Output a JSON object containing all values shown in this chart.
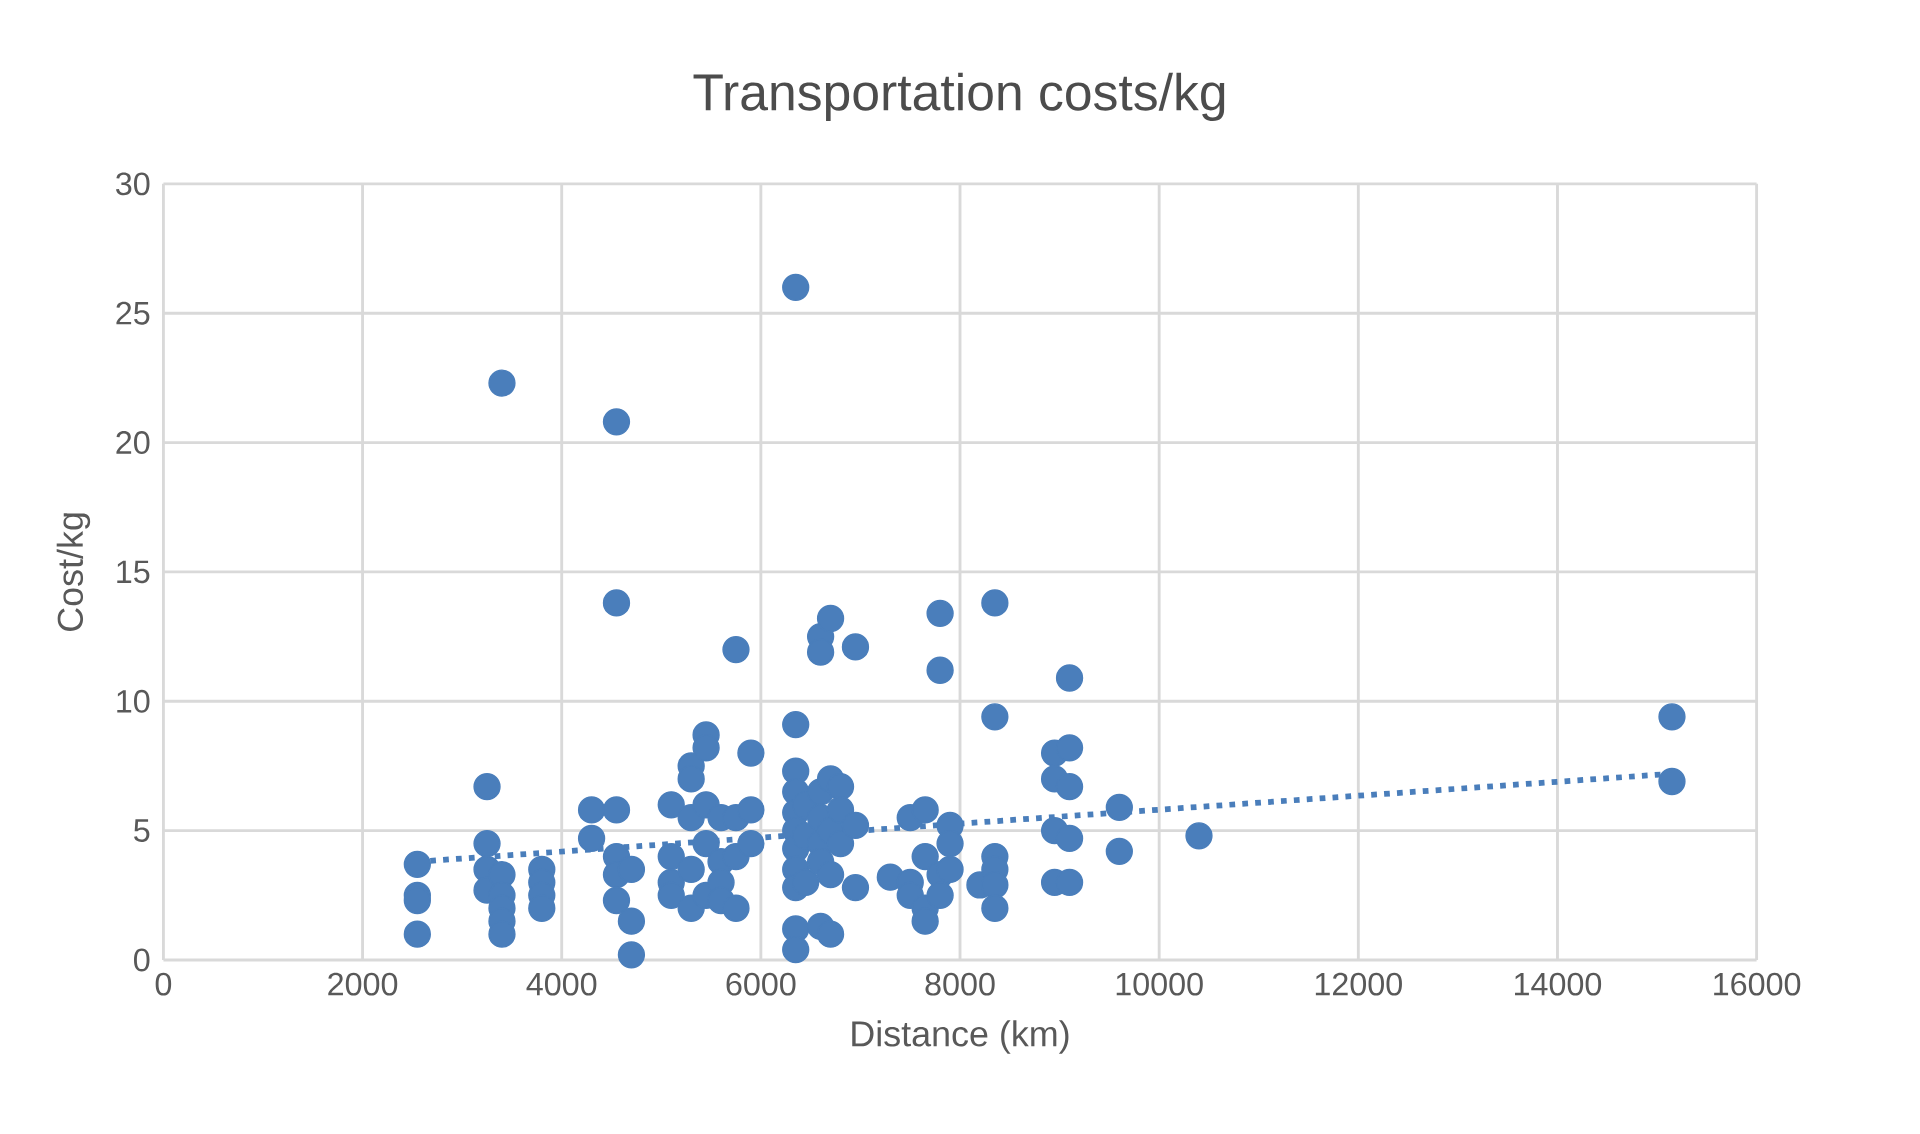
{
  "chart_data": {
    "type": "scatter",
    "title": "Transportation costs/kg",
    "xlabel": "Distance (km)",
    "ylabel": "Cost/kg",
    "xlim": [
      0,
      16000
    ],
    "xticks": [
      0,
      2000,
      4000,
      6000,
      8000,
      10000,
      12000,
      14000,
      16000
    ],
    "ylim": [
      0,
      30
    ],
    "yticks": [
      0,
      5,
      10,
      15,
      20,
      25,
      30
    ],
    "grid": true,
    "marker": "circle",
    "series": [
      {
        "color": "#4a7ebb",
        "x": [
          2550,
          2550,
          2550,
          2550,
          3250,
          3250,
          3250,
          3250,
          3400,
          3400,
          3400,
          3400,
          3400,
          3400,
          3800,
          3800,
          3800,
          3800,
          4300,
          4300,
          4550,
          4550,
          4550,
          4550,
          4550,
          4550,
          4700,
          4700,
          4700,
          5100,
          5100,
          5100,
          5100,
          5300,
          5300,
          5300,
          5300,
          5300,
          5450,
          5450,
          5450,
          5450,
          5450,
          5600,
          5600,
          5600,
          5600,
          5750,
          5750,
          5750,
          5750,
          5900,
          5900,
          5900,
          6350,
          6350,
          6350,
          6350,
          6350,
          6350,
          6350,
          6350,
          6350,
          6350,
          6350,
          6450,
          6450,
          6450,
          6600,
          6600,
          6600,
          6600,
          6600,
          6600,
          6600,
          6700,
          6700,
          6700,
          6700,
          6700,
          6800,
          6800,
          6800,
          6950,
          6950,
          6950,
          7300,
          7500,
          7500,
          7500,
          7650,
          7650,
          7650,
          7650,
          7800,
          7800,
          7800,
          7800,
          7900,
          7900,
          7900,
          8200,
          8350,
          8350,
          8350,
          8350,
          8350,
          8350,
          8950,
          8950,
          8950,
          8950,
          9100,
          9100,
          9100,
          9100,
          9100,
          9600,
          9600,
          10400,
          15150,
          15150
        ],
        "values": [
          3.7,
          2.5,
          2.3,
          1.0,
          6.7,
          4.5,
          3.5,
          2.7,
          22.3,
          3.3,
          2.5,
          2.0,
          1.5,
          1.0,
          3.5,
          3.0,
          2.5,
          2.0,
          5.8,
          4.7,
          20.8,
          13.8,
          5.8,
          4.0,
          3.3,
          2.3,
          3.5,
          1.5,
          0.2,
          6.0,
          4.0,
          3.0,
          2.5,
          7.5,
          7.0,
          5.5,
          3.5,
          2.0,
          8.7,
          8.2,
          6.0,
          4.5,
          2.5,
          5.5,
          3.8,
          3.0,
          2.3,
          12.0,
          5.5,
          4.0,
          2.0,
          8.0,
          5.8,
          4.5,
          26.0,
          9.1,
          7.3,
          6.5,
          5.7,
          5.0,
          4.3,
          3.5,
          2.8,
          1.2,
          0.4,
          6.0,
          4.8,
          3.0,
          12.5,
          11.9,
          6.5,
          5.5,
          4.5,
          3.8,
          1.3,
          13.2,
          7.0,
          5.0,
          3.3,
          1.0,
          6.7,
          5.8,
          4.5,
          12.1,
          5.2,
          2.8,
          3.2,
          5.5,
          3.0,
          2.5,
          5.8,
          4.0,
          2.0,
          1.5,
          13.4,
          11.2,
          3.3,
          2.5,
          5.2,
          4.5,
          3.5,
          2.9,
          13.8,
          9.4,
          4.0,
          3.5,
          2.9,
          2.0,
          8.0,
          7.0,
          5.0,
          3.0,
          10.9,
          8.2,
          6.7,
          4.7,
          3.0,
          5.9,
          4.2,
          4.8,
          9.4,
          6.9
        ]
      },
      {
        "color": "#4a7ebb",
        "type": "line",
        "marker": "none",
        "line_style": "dotted",
        "x": [
          2550,
          15150
        ],
        "values": [
          3.8,
          7.2
        ]
      }
    ]
  }
}
